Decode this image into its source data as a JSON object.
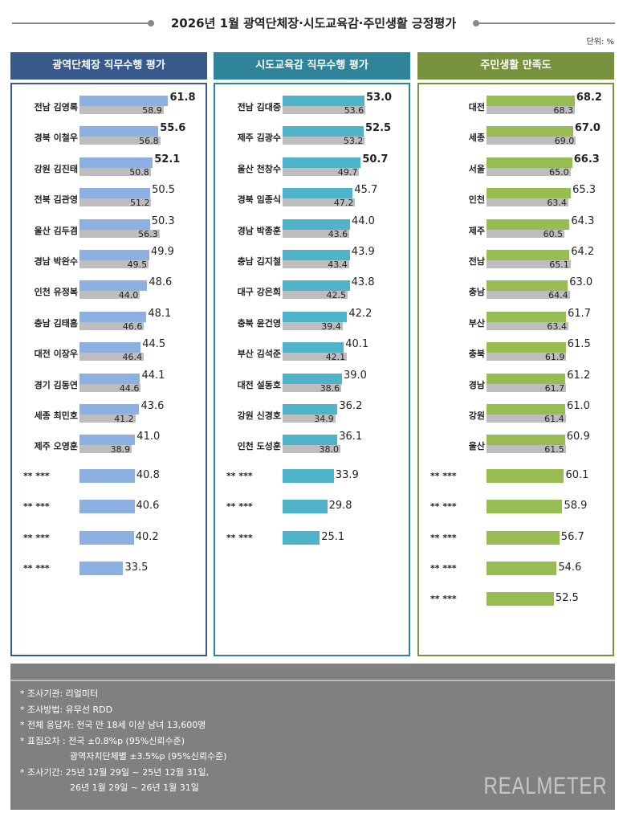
{
  "title": "2026년 1월 광역단체장·시도교육감·주민생활 긍정평가",
  "unit": "단위: %",
  "colors": {
    "panel1_head": "#37598c",
    "panel2_head": "#2f8499",
    "panel3_head": "#77923d",
    "panel1_bar": "#8db0e3",
    "panel2_bar": "#4fb3ca",
    "panel3_bar": "#97bd52",
    "prev_bar": "#bdbdbd"
  },
  "chart_data": [
    {
      "type": "bar",
      "title": "광역단체장 직무수행 평가",
      "categories": [
        "전남 김영록",
        "경북 이철우",
        "강원 김진태",
        "전북 김관영",
        "울산 김두겸",
        "경남 박완수",
        "인천 유정복",
        "충남 김태흠",
        "대전 이장우",
        "경기 김동연",
        "세종 최민호",
        "제주 오영훈",
        "** ***",
        "** ***",
        "** ***",
        "** ***"
      ],
      "values": [
        61.8,
        55.6,
        52.1,
        50.5,
        50.3,
        49.9,
        48.6,
        48.1,
        44.5,
        44.1,
        43.6,
        41.0,
        40.8,
        40.6,
        40.2,
        33.5
      ],
      "previous": [
        58.9,
        56.8,
        50.8,
        51.2,
        56.3,
        49.5,
        44.0,
        46.6,
        46.4,
        44.6,
        41.2,
        38.9,
        null,
        null,
        null,
        null
      ]
    },
    {
      "type": "bar",
      "title": "시도교육감 직무수행 평가",
      "categories": [
        "전남 김대중",
        "제주 김광수",
        "울산 천창수",
        "경북 임종식",
        "경남 박종훈",
        "충남 김지철",
        "대구 강은희",
        "충북 윤건영",
        "부산 김석준",
        "대전 설동호",
        "강원 신경호",
        "인천 도성훈",
        "** ***",
        "** ***",
        "** ***"
      ],
      "values": [
        53.0,
        52.5,
        50.7,
        45.7,
        44.0,
        43.9,
        43.8,
        42.2,
        40.1,
        39.0,
        36.2,
        36.1,
        33.9,
        29.8,
        25.1
      ],
      "previous": [
        53.6,
        53.2,
        49.7,
        47.2,
        43.6,
        43.4,
        42.5,
        39.4,
        42.1,
        38.6,
        34.9,
        38.0,
        null,
        null,
        null
      ]
    },
    {
      "type": "bar",
      "title": "주민생활 만족도",
      "categories": [
        "대전",
        "세종",
        "서울",
        "인천",
        "제주",
        "전남",
        "충남",
        "부산",
        "충북",
        "경남",
        "강원",
        "울산",
        "** ***",
        "** ***",
        "** ***",
        "** ***",
        "** ***"
      ],
      "values": [
        68.2,
        67.0,
        66.3,
        65.3,
        64.3,
        64.2,
        63.0,
        61.7,
        61.5,
        61.2,
        61.0,
        60.9,
        60.1,
        58.9,
        56.7,
        54.6,
        52.5
      ],
      "previous": [
        68.3,
        69.0,
        65.0,
        63.4,
        60.5,
        65.1,
        64.4,
        63.4,
        61.9,
        61.7,
        61.4,
        61.5,
        null,
        null,
        null,
        null,
        null
      ]
    }
  ],
  "footer": {
    "notes": [
      "* 조사기관: 리얼미터",
      "* 조사방법: 유무선 RDD",
      "* 전체 응답자: 전국 만 18세 이상 남녀 13,600명",
      "* 표집오차 : 전국  ±0.8%p (95%신뢰수준)",
      "광역자치단체별  ±3.5%p (95%신뢰수준)",
      "* 조사기간: 25년 12월 29일 ~ 25년 12월 31일,",
      "26년 1월 29일 ~ 26년 1월 31일"
    ],
    "logo": "REALMETER"
  }
}
